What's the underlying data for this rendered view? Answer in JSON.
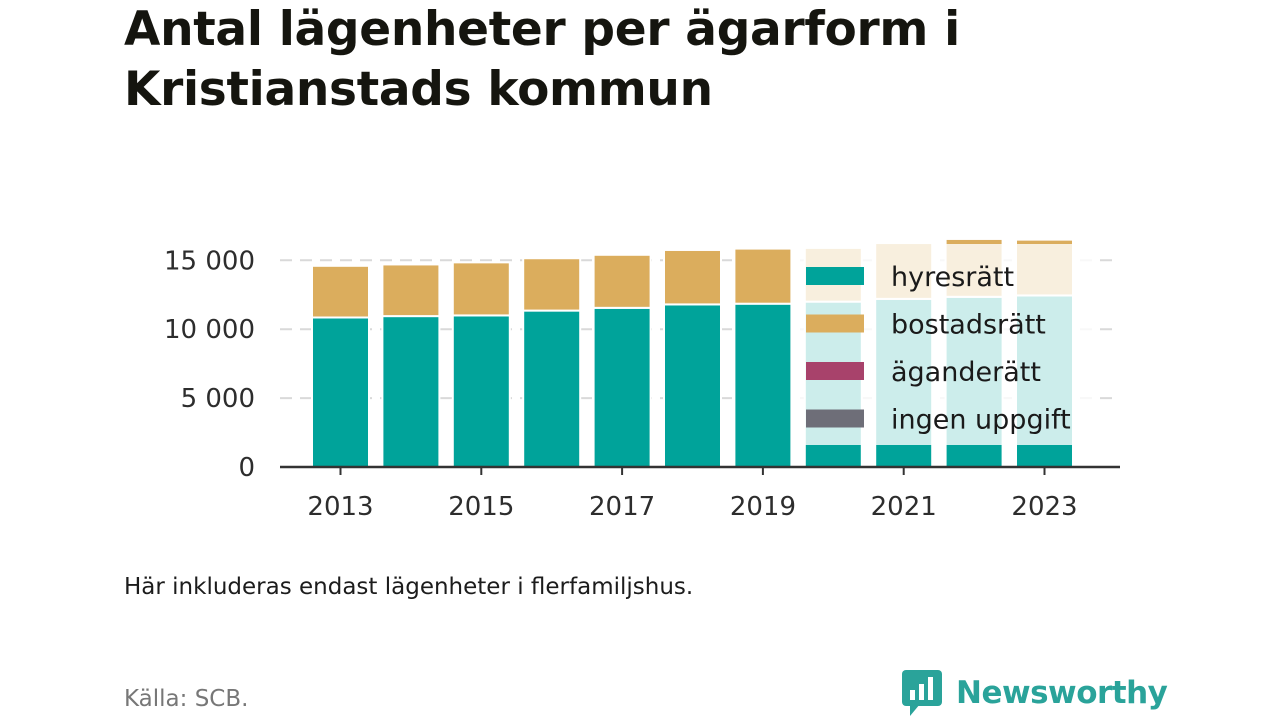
{
  "title": "Antal lägenheter per ägarform i Kristianstads kommun",
  "note": "Här inkluderas endast lägenheter i flerfamiljshus.",
  "source": "Källa: SCB.",
  "brand": "Newsworthy",
  "colors": {
    "hyresratt": "#00a39a",
    "bostadsratt": "#dbad5d",
    "aganderatt": "#a8426b",
    "ingen_uppgift": "#6e6e78",
    "brand": "#2aa39a"
  },
  "chart_data": {
    "type": "bar",
    "stacked": true,
    "categories": [
      "2013",
      "2014",
      "2015",
      "2016",
      "2017",
      "2018",
      "2019",
      "2020",
      "2021",
      "2022",
      "2023"
    ],
    "x_tick_labels": [
      "2013",
      "2015",
      "2017",
      "2019",
      "2021",
      "2023"
    ],
    "y_ticks": [
      0,
      5000,
      10000,
      15000
    ],
    "y_tick_labels": [
      "0",
      "5 000",
      "10 000",
      "15 000"
    ],
    "ylim": [
      0,
      16500
    ],
    "grid": true,
    "legend_position": "right",
    "series": [
      {
        "name": "hyresrätt",
        "color": "#00a39a",
        "values": [
          10850,
          10950,
          11000,
          11350,
          11550,
          11800,
          11850,
          12000,
          12200,
          12350,
          12450
        ]
      },
      {
        "name": "bostadsrätt",
        "color": "#dbad5d",
        "values": [
          3750,
          3750,
          3850,
          3800,
          3850,
          3950,
          4000,
          3900,
          4050,
          4200,
          4050
        ]
      },
      {
        "name": "äganderätt",
        "color": "#a8426b",
        "values": [
          0,
          0,
          0,
          0,
          0,
          0,
          0,
          0,
          0,
          0,
          0
        ]
      },
      {
        "name": "ingen uppgift",
        "color": "#6e6e78",
        "values": [
          0,
          0,
          0,
          0,
          0,
          0,
          0,
          0,
          0,
          0,
          0
        ]
      }
    ]
  }
}
